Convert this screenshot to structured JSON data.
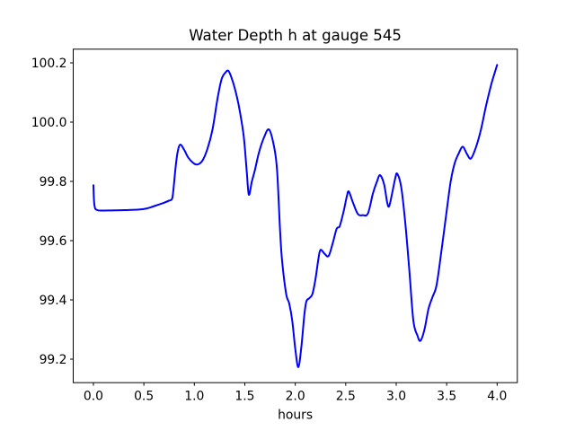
{
  "figure": {
    "background": "#ffffff",
    "title": "Water Depth h at gauge 545"
  },
  "chart_data": {
    "type": "line",
    "title": "Water Depth h at gauge 545",
    "xlabel": "hours",
    "ylabel": "",
    "grid": false,
    "legend": null,
    "xlim": [
      -0.2,
      4.2
    ],
    "ylim": [
      99.1208,
      100.2462
    ],
    "xticks": [
      0.0,
      0.5,
      1.0,
      1.5,
      2.0,
      2.5,
      3.0,
      3.5,
      4.0
    ],
    "xtick_labels": [
      "0.0",
      "0.5",
      "1.0",
      "1.5",
      "2.0",
      "2.5",
      "3.0",
      "3.5",
      "4.0"
    ],
    "yticks": [
      99.2,
      99.4,
      99.6,
      99.8,
      100.0,
      100.2
    ],
    "ytick_labels": [
      "99.2",
      "99.4",
      "99.6",
      "99.8",
      "100.0",
      "100.2"
    ],
    "series": [
      {
        "name": "water-depth-h",
        "color": "#0000ff",
        "line_width": 2,
        "points": [
          [
            0.0,
            99.787
          ],
          [
            0.01,
            99.72
          ],
          [
            0.04,
            99.703
          ],
          [
            0.15,
            99.702
          ],
          [
            0.3,
            99.703
          ],
          [
            0.45,
            99.705
          ],
          [
            0.52,
            99.708
          ],
          [
            0.58,
            99.714
          ],
          [
            0.64,
            99.721
          ],
          [
            0.7,
            99.728
          ],
          [
            0.75,
            99.735
          ],
          [
            0.78,
            99.742
          ],
          [
            0.795,
            99.78
          ],
          [
            0.815,
            99.85
          ],
          [
            0.835,
            99.9
          ],
          [
            0.86,
            99.924
          ],
          [
            0.9,
            99.906
          ],
          [
            0.94,
            99.88
          ],
          [
            0.99,
            99.862
          ],
          [
            1.03,
            99.857
          ],
          [
            1.08,
            99.87
          ],
          [
            1.13,
            99.91
          ],
          [
            1.18,
            99.975
          ],
          [
            1.23,
            100.08
          ],
          [
            1.27,
            100.145
          ],
          [
            1.31,
            100.168
          ],
          [
            1.34,
            100.172
          ],
          [
            1.38,
            100.138
          ],
          [
            1.42,
            100.088
          ],
          [
            1.45,
            100.038
          ],
          [
            1.49,
            99.95
          ],
          [
            1.52,
            99.83
          ],
          [
            1.54,
            99.755
          ],
          [
            1.57,
            99.8
          ],
          [
            1.6,
            99.838
          ],
          [
            1.64,
            99.897
          ],
          [
            1.69,
            99.948
          ],
          [
            1.74,
            99.975
          ],
          [
            1.79,
            99.917
          ],
          [
            1.82,
            99.836
          ],
          [
            1.85,
            99.63
          ],
          [
            1.87,
            99.53
          ],
          [
            1.91,
            99.42
          ],
          [
            1.94,
            99.388
          ],
          [
            1.97,
            99.33
          ],
          [
            2.0,
            99.235
          ],
          [
            2.03,
            99.173
          ],
          [
            2.06,
            99.24
          ],
          [
            2.09,
            99.35
          ],
          [
            2.11,
            99.395
          ],
          [
            2.14,
            99.406
          ],
          [
            2.17,
            99.42
          ],
          [
            2.2,
            99.47
          ],
          [
            2.23,
            99.54
          ],
          [
            2.25,
            99.569
          ],
          [
            2.29,
            99.556
          ],
          [
            2.33,
            99.548
          ],
          [
            2.37,
            99.59
          ],
          [
            2.41,
            99.64
          ],
          [
            2.44,
            99.649
          ],
          [
            2.48,
            99.7
          ],
          [
            2.51,
            99.748
          ],
          [
            2.53,
            99.766
          ],
          [
            2.57,
            99.73
          ],
          [
            2.62,
            99.69
          ],
          [
            2.67,
            99.686
          ],
          [
            2.72,
            99.692
          ],
          [
            2.77,
            99.76
          ],
          [
            2.81,
            99.8
          ],
          [
            2.84,
            99.821
          ],
          [
            2.88,
            99.79
          ],
          [
            2.91,
            99.73
          ],
          [
            2.93,
            99.716
          ],
          [
            2.96,
            99.76
          ],
          [
            2.99,
            99.81
          ],
          [
            3.01,
            99.826
          ],
          [
            3.05,
            99.78
          ],
          [
            3.09,
            99.66
          ],
          [
            3.13,
            99.5
          ],
          [
            3.17,
            99.33
          ],
          [
            3.21,
            99.28
          ],
          [
            3.24,
            99.262
          ],
          [
            3.28,
            99.3
          ],
          [
            3.32,
            99.37
          ],
          [
            3.36,
            99.41
          ],
          [
            3.4,
            99.45
          ],
          [
            3.45,
            99.57
          ],
          [
            3.5,
            99.7
          ],
          [
            3.54,
            99.8
          ],
          [
            3.58,
            99.862
          ],
          [
            3.62,
            99.895
          ],
          [
            3.66,
            99.917
          ],
          [
            3.7,
            99.893
          ],
          [
            3.74,
            99.877
          ],
          [
            3.79,
            99.915
          ],
          [
            3.84,
            99.975
          ],
          [
            3.89,
            100.055
          ],
          [
            3.94,
            100.125
          ],
          [
            3.97,
            100.16
          ],
          [
            4.0,
            100.193
          ]
        ]
      }
    ]
  }
}
